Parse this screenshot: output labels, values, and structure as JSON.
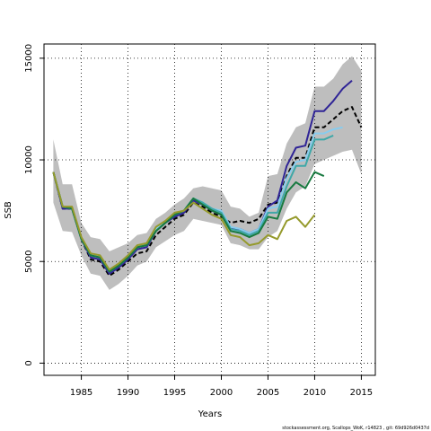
{
  "chart_data": {
    "type": "line",
    "xlabel": "Years",
    "ylabel": "SSB",
    "xlim": [
      1981,
      2016.5
    ],
    "ylim": [
      -600,
      15700
    ],
    "xticks": [
      1985,
      1990,
      1995,
      2000,
      2005,
      2010,
      2015
    ],
    "yticks": [
      0,
      5000,
      10000,
      15000
    ],
    "grid": "dotted",
    "band": {
      "x": [
        1982,
        1983,
        1984,
        1985,
        1986,
        1987,
        1988,
        1989,
        1990,
        1991,
        1992,
        1993,
        1994,
        1995,
        1996,
        1997,
        1998,
        1999,
        2000,
        2001,
        2002,
        2003,
        2004,
        2005,
        2006,
        2007,
        2008,
        2009,
        2010,
        2011,
        2012,
        2013,
        2014,
        2015
      ],
      "lower": [
        7900,
        6500,
        6450,
        5300,
        4400,
        4300,
        3600,
        3900,
        4300,
        4800,
        5000,
        5700,
        6000,
        6300,
        6500,
        7100,
        7000,
        6900,
        6800,
        5900,
        5800,
        5600,
        5600,
        6200,
        6500,
        7600,
        8400,
        8700,
        9800,
        10000,
        10200,
        10400,
        10500,
        9300
      ],
      "upper": [
        11000,
        8800,
        8800,
        6900,
        6200,
        6100,
        5500,
        5700,
        5900,
        6300,
        6400,
        7100,
        7400,
        7800,
        8100,
        8600,
        8700,
        8600,
        8500,
        7700,
        7600,
        7200,
        7400,
        9200,
        9300,
        10800,
        11600,
        11800,
        13600,
        13600,
        14000,
        14700,
        15100,
        14400
      ]
    },
    "series": [
      {
        "color": "#000000",
        "dashed": true,
        "x": [
          1982,
          1983,
          1984,
          1985,
          1986,
          1987,
          1988,
          1989,
          1990,
          1991,
          1992,
          1993,
          1994,
          1995,
          1996,
          1997,
          1998,
          1999,
          2000,
          2001,
          2002,
          2003,
          2004,
          2005,
          2006,
          2007,
          2008,
          2009,
          2010,
          2011,
          2012,
          2013,
          2014,
          2015
        ],
        "y": [
          9400,
          7600,
          7600,
          6100,
          5100,
          5000,
          4300,
          4600,
          5000,
          5400,
          5500,
          6300,
          6700,
          7100,
          7300,
          7900,
          7700,
          7400,
          7200,
          6900,
          7000,
          6900,
          7100,
          7800,
          7900,
          9200,
          10100,
          10100,
          11600,
          11600,
          12000,
          12400,
          12600,
          11600
        ]
      },
      {
        "color": "#2f2496",
        "dashed": false,
        "x": [
          1982,
          1983,
          1984,
          1985,
          1986,
          1987,
          1988,
          1989,
          1990,
          1991,
          1992,
          1993,
          1994,
          1995,
          1996,
          1997,
          1998,
          1999,
          2000,
          2001,
          2002,
          2003,
          2004,
          2005,
          2006,
          2007,
          2008,
          2009,
          2010,
          2011,
          2012,
          2013,
          2014
        ],
        "y": [
          9400,
          7600,
          7600,
          6100,
          5200,
          5100,
          4400,
          4700,
          5100,
          5600,
          5700,
          6500,
          6900,
          7200,
          7400,
          8000,
          7800,
          7500,
          7300,
          6600,
          6600,
          6400,
          6600,
          7700,
          8000,
          9700,
          10600,
          10700,
          12400,
          12400,
          12900,
          13500,
          13900
        ]
      },
      {
        "color": "#88ccee",
        "dashed": false,
        "x": [
          1982,
          1983,
          1984,
          1985,
          1986,
          1987,
          1988,
          1989,
          1990,
          1991,
          1992,
          1993,
          1994,
          1995,
          1996,
          1997,
          1998,
          1999,
          2000,
          2001,
          2002,
          2003,
          2004,
          2005,
          2006,
          2007,
          2008,
          2009,
          2010,
          2011,
          2012,
          2013
        ],
        "y": [
          9400,
          7700,
          7600,
          6100,
          5300,
          5200,
          4500,
          4800,
          5200,
          5700,
          5800,
          6600,
          7000,
          7300,
          7500,
          8100,
          7900,
          7600,
          7500,
          6700,
          6600,
          6400,
          6600,
          7600,
          7700,
          9100,
          9900,
          10000,
          11300,
          11300,
          11500,
          11600
        ]
      },
      {
        "color": "#3ea8a8",
        "dashed": false,
        "x": [
          1982,
          1983,
          1984,
          1985,
          1986,
          1987,
          1988,
          1989,
          1990,
          1991,
          1992,
          1993,
          1994,
          1995,
          1996,
          1997,
          1998,
          1999,
          2000,
          2001,
          2002,
          2003,
          2004,
          2005,
          2006,
          2007,
          2008,
          2009,
          2010,
          2011,
          2012
        ],
        "y": [
          9400,
          7700,
          7600,
          6100,
          5300,
          5200,
          4500,
          4800,
          5200,
          5700,
          5800,
          6500,
          6900,
          7300,
          7500,
          8100,
          7900,
          7600,
          7400,
          6600,
          6500,
          6300,
          6500,
          7400,
          7400,
          8700,
          9700,
          9700,
          11000,
          11000,
          11200
        ]
      },
      {
        "color": "#187a40",
        "dashed": false,
        "x": [
          1982,
          1983,
          1984,
          1985,
          1986,
          1987,
          1988,
          1989,
          1990,
          1991,
          1992,
          1993,
          1994,
          1995,
          1996,
          1997,
          1998,
          1999,
          2000,
          2001,
          2002,
          2003,
          2004,
          2005,
          2006,
          2007,
          2008,
          2009,
          2010,
          2011
        ],
        "y": [
          9400,
          7700,
          7600,
          6100,
          5300,
          5200,
          4500,
          4800,
          5200,
          5700,
          5800,
          6500,
          6900,
          7300,
          7500,
          8100,
          7800,
          7500,
          7300,
          6500,
          6400,
          6200,
          6400,
          7200,
          7100,
          8400,
          8900,
          8600,
          9400,
          9200
        ]
      },
      {
        "color": "#959a2c",
        "dashed": false,
        "x": [
          1982,
          1983,
          1984,
          1985,
          1986,
          1987,
          1988,
          1989,
          1990,
          1991,
          1992,
          1993,
          1994,
          1995,
          1996,
          1997,
          1998,
          1999,
          2000,
          2001,
          2002,
          2003,
          2004,
          2005,
          2006,
          2007,
          2008,
          2009,
          2010
        ],
        "y": [
          9400,
          7700,
          7700,
          6200,
          5400,
          5300,
          4600,
          4900,
          5300,
          5800,
          5900,
          6700,
          7000,
          7400,
          7500,
          7900,
          7600,
          7300,
          7100,
          6300,
          6200,
          5800,
          5900,
          6300,
          6100,
          7000,
          7200,
          6700,
          7300
        ]
      }
    ]
  },
  "footer": "stockassessment.org, Scallops_WoK, r14823 , git: 69d926d0437d"
}
